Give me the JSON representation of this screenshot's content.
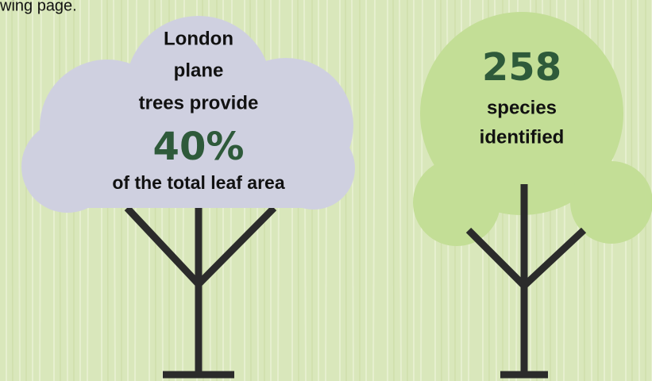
{
  "header": {
    "text": "wing page."
  },
  "left_tree": {
    "lines": [
      "London",
      "plane",
      "trees provide"
    ],
    "figure": "40%",
    "caption": "of the total leaf area"
  },
  "right_tree": {
    "figure": "258",
    "lines": [
      "species",
      "identified"
    ]
  }
}
